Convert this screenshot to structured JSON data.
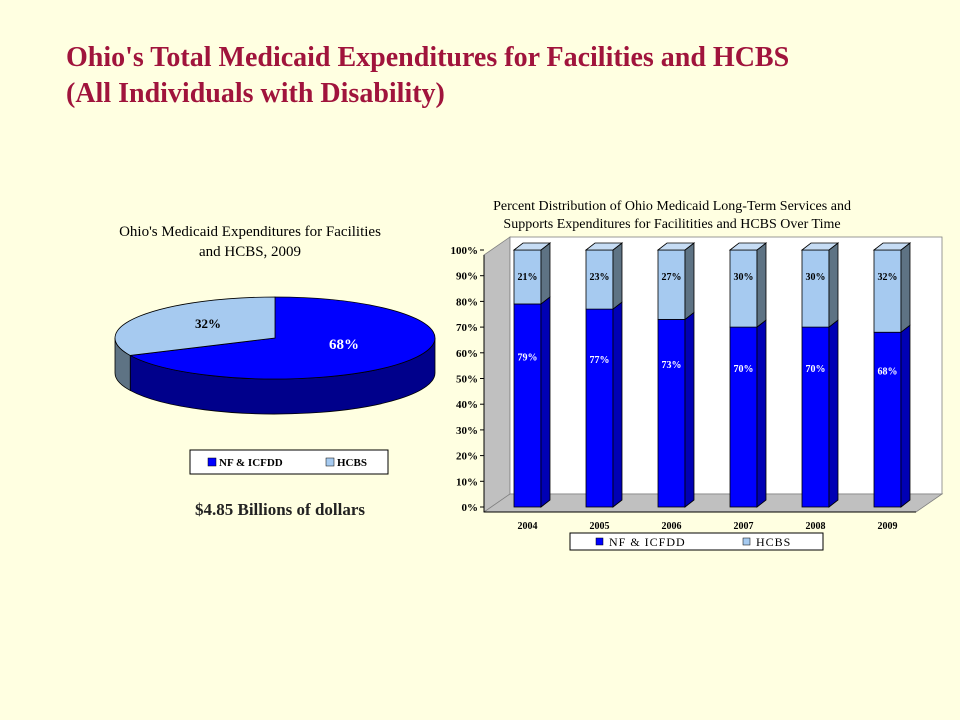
{
  "slide": {
    "title_line1": "Ohio's Total Medicaid Expenditures for Facilities and HCBS",
    "title_line2": "(All Individuals with Disability)",
    "caption": "$4.85 Billions of dollars"
  },
  "colors": {
    "nf": "#0000ff",
    "nf_dark": "#00008b",
    "hcbs": "#a6caf0",
    "hcbs_dark": "#5e7384",
    "title": "#a0143c"
  },
  "chart_data": [
    {
      "type": "pie",
      "title_line1": "Ohio's Medicaid Expenditures for Facilities",
      "title_line2": "and HCBS, 2009",
      "slices": [
        {
          "label": "NF & ICFDD",
          "value": 68,
          "display": "68%"
        },
        {
          "label": "HCBS",
          "value": 32,
          "display": "32%"
        }
      ],
      "legend": [
        "NF & ICFDD",
        "HCBS"
      ],
      "legend_position": "bottom"
    },
    {
      "type": "bar",
      "stacked": true,
      "title_line1": "Percent Distribution of Ohio Medicaid Long-Term Services and",
      "title_line2": "Supports Expenditures for Facilitities and HCBS Over Time",
      "categories": [
        "2004",
        "2005",
        "2006",
        "2007",
        "2008",
        "2009"
      ],
      "series": [
        {
          "name": "NF & ICFDD",
          "values": [
            79,
            77,
            73,
            70,
            70,
            68
          ],
          "labels": [
            "79%",
            "77%",
            "73%",
            "70%",
            "70%",
            "68%"
          ]
        },
        {
          "name": "HCBS",
          "values": [
            21,
            23,
            27,
            30,
            30,
            32
          ],
          "labels": [
            "21%",
            "23%",
            "27%",
            "30%",
            "30%",
            "32%"
          ]
        }
      ],
      "y_ticks": [
        "0%",
        "10%",
        "20%",
        "30%",
        "40%",
        "50%",
        "60%",
        "70%",
        "80%",
        "90%",
        "100%"
      ],
      "ylim": [
        0,
        100
      ],
      "legend_position": "bottom"
    }
  ]
}
